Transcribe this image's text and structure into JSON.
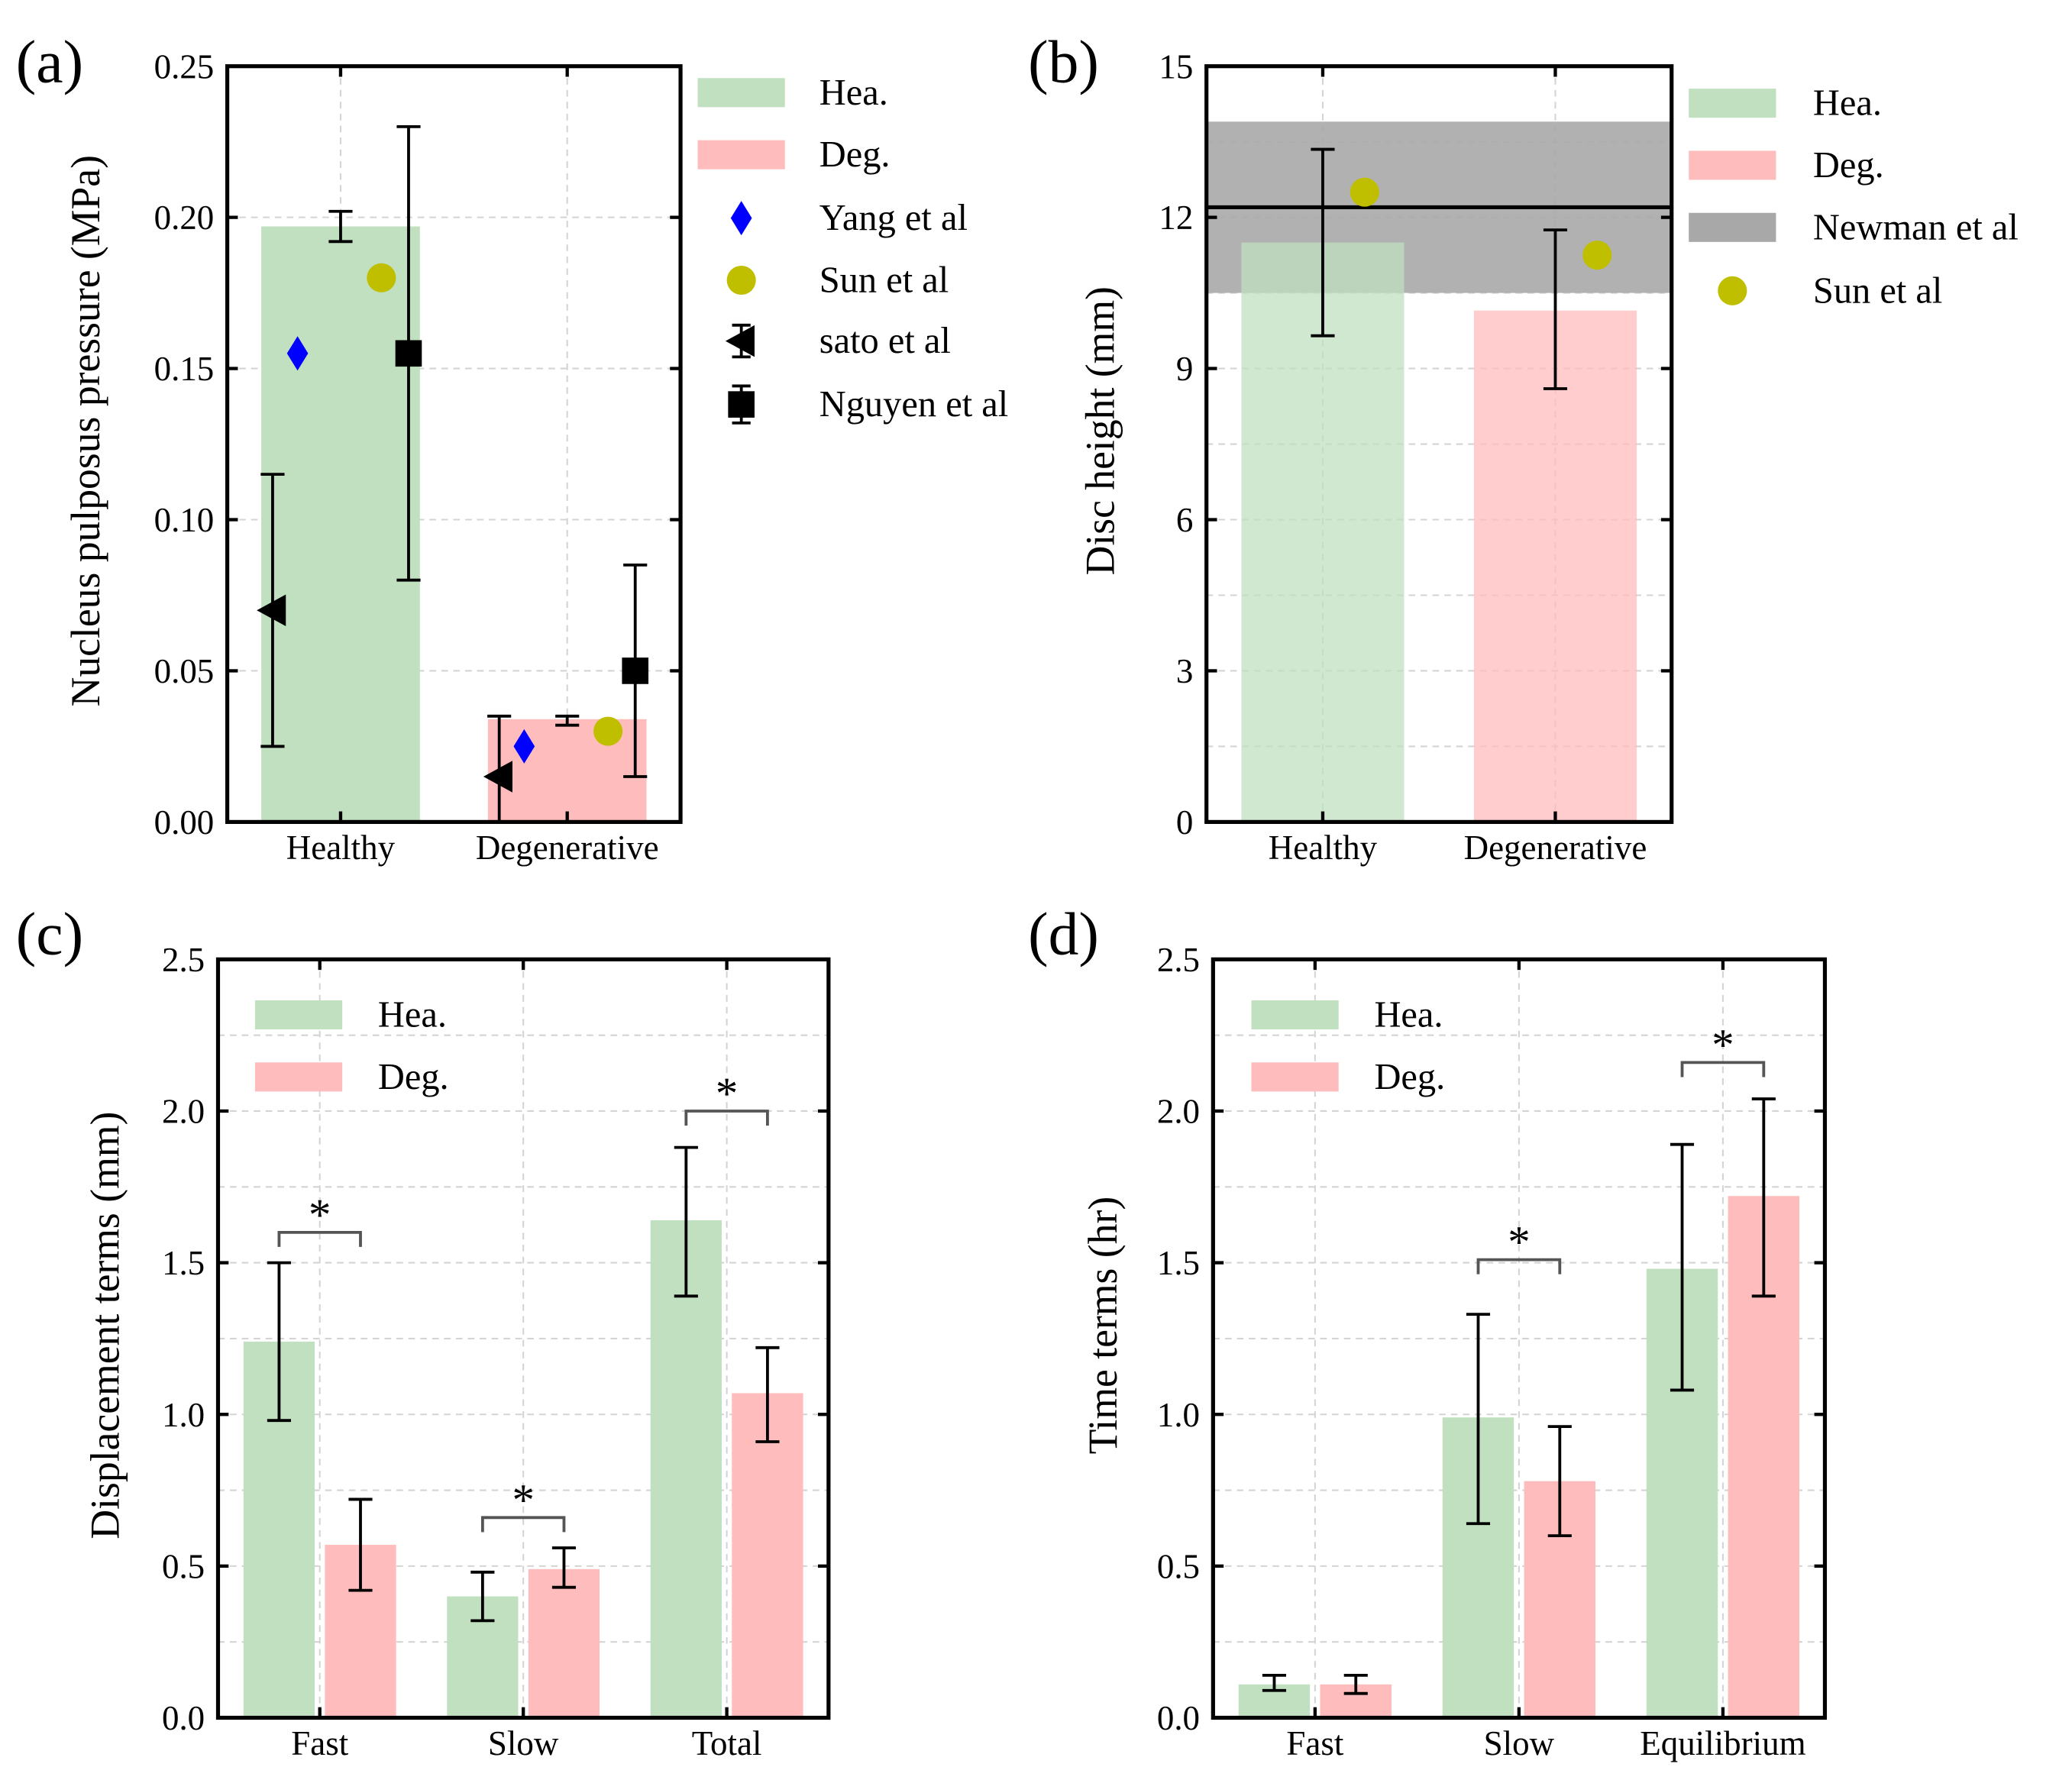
{
  "colors": {
    "healthy": "#c0e0c0",
    "degenerative": "#ffbcbc",
    "newman": "#a8a8a8",
    "yang": "#0000ff",
    "sun": "#bfbf00",
    "black": "#000000"
  },
  "chart_data": [
    {
      "panel_label": "(a)",
      "type": "bar",
      "ylabel": "Nucleus pulposus pressure (MPa)",
      "categories": [
        "Healthy",
        "Degenerative"
      ],
      "ylim": [
        0,
        0.25
      ],
      "yticks": [
        "0.00",
        "0.05",
        "0.10",
        "0.15",
        "0.20",
        "0.25"
      ],
      "grid": true,
      "legend_placement": "outside-right",
      "legend": [
        "Hea.",
        "Deg.",
        "Yang et al",
        "Sun et al",
        "sato et al",
        "Nguyen et al"
      ],
      "bars": {
        "values": [
          0.197,
          0.034
        ],
        "err_low": [
          0.192,
          0.032
        ],
        "err_high": [
          0.202,
          0.035
        ]
      },
      "points": [
        {
          "name": "Yang et al",
          "marker": "diamond",
          "values": [
            0.155,
            0.025
          ]
        },
        {
          "name": "Sun et al",
          "marker": "circle",
          "values": [
            0.18,
            0.03
          ]
        },
        {
          "name": "sato et al",
          "marker": "triangle-left",
          "values": [
            0.07,
            0.015
          ],
          "err_low": [
            0.025,
            0.0
          ],
          "err_high": [
            0.115,
            0.035
          ]
        },
        {
          "name": "Nguyen et al",
          "marker": "square",
          "values": [
            0.155,
            0.05
          ],
          "err_low": [
            0.08,
            0.015
          ],
          "err_high": [
            0.23,
            0.085
          ]
        }
      ]
    },
    {
      "panel_label": "(b)",
      "type": "bar",
      "ylabel": "Disc height (mm)",
      "categories": [
        "Healthy",
        "Degenerative"
      ],
      "ylim": [
        0,
        15
      ],
      "yticks": [
        "0",
        "3",
        "6",
        "9",
        "12",
        "15"
      ],
      "grid": true,
      "legend_placement": "outside-right",
      "legend": [
        "Hea.",
        "Deg.",
        "Newman et al",
        "Sun et al"
      ],
      "bars": {
        "values": [
          11.5,
          10.15
        ],
        "err_low": [
          9.65,
          8.6
        ],
        "err_high": [
          13.35,
          11.75
        ]
      },
      "band": {
        "name": "Newman et al",
        "low": 10.5,
        "high": 13.9,
        "mean": 12.2
      },
      "points": [
        {
          "name": "Sun et al",
          "marker": "circle",
          "values": [
            12.5,
            11.25
          ]
        }
      ]
    },
    {
      "panel_label": "(c)",
      "type": "bar",
      "ylabel": "Displacement terms (mm)",
      "categories": [
        "Fast",
        "Slow",
        "Total"
      ],
      "ylim": [
        0,
        2.5
      ],
      "yticks": [
        "0.0",
        "0.5",
        "1.0",
        "1.5",
        "2.0",
        "2.5"
      ],
      "grid": true,
      "legend_placement": "top-left",
      "legend": [
        "Hea.",
        "Deg."
      ],
      "series": [
        {
          "name": "Hea.",
          "values": [
            1.24,
            0.4,
            1.64
          ],
          "err_low": [
            0.98,
            0.32,
            1.39
          ],
          "err_high": [
            1.5,
            0.48,
            1.88
          ]
        },
        {
          "name": "Deg.",
          "values": [
            0.57,
            0.49,
            1.07
          ],
          "err_low": [
            0.42,
            0.43,
            0.91
          ],
          "err_high": [
            0.72,
            0.56,
            1.22
          ]
        }
      ],
      "significance": [
        {
          "category": "Fast",
          "label": "*",
          "y": 1.6
        },
        {
          "category": "Slow",
          "label": "*",
          "y": 0.66
        },
        {
          "category": "Total",
          "label": "*",
          "y": 2.0
        }
      ]
    },
    {
      "panel_label": "(d)",
      "type": "bar",
      "ylabel": "Time terms (hr)",
      "categories": [
        "Fast",
        "Slow",
        "Equilibrium"
      ],
      "ylim": [
        0,
        2.5
      ],
      "yticks": [
        "0.0",
        "0.5",
        "1.0",
        "1.5",
        "2.0",
        "2.5"
      ],
      "grid": true,
      "legend_placement": "top-left",
      "legend": [
        "Hea.",
        "Deg."
      ],
      "series": [
        {
          "name": "Hea.",
          "values": [
            0.11,
            0.99,
            1.48
          ],
          "err_low": [
            0.09,
            0.64,
            1.08
          ],
          "err_high": [
            0.14,
            1.33,
            1.89
          ]
        },
        {
          "name": "Deg.",
          "values": [
            0.11,
            0.78,
            1.72
          ],
          "err_low": [
            0.08,
            0.6,
            1.39
          ],
          "err_high": [
            0.14,
            0.96,
            2.04
          ]
        }
      ],
      "significance": [
        {
          "category": "Slow",
          "label": "*",
          "y": 1.51
        },
        {
          "category": "Equilibrium",
          "label": "*",
          "y": 2.16
        }
      ]
    }
  ]
}
